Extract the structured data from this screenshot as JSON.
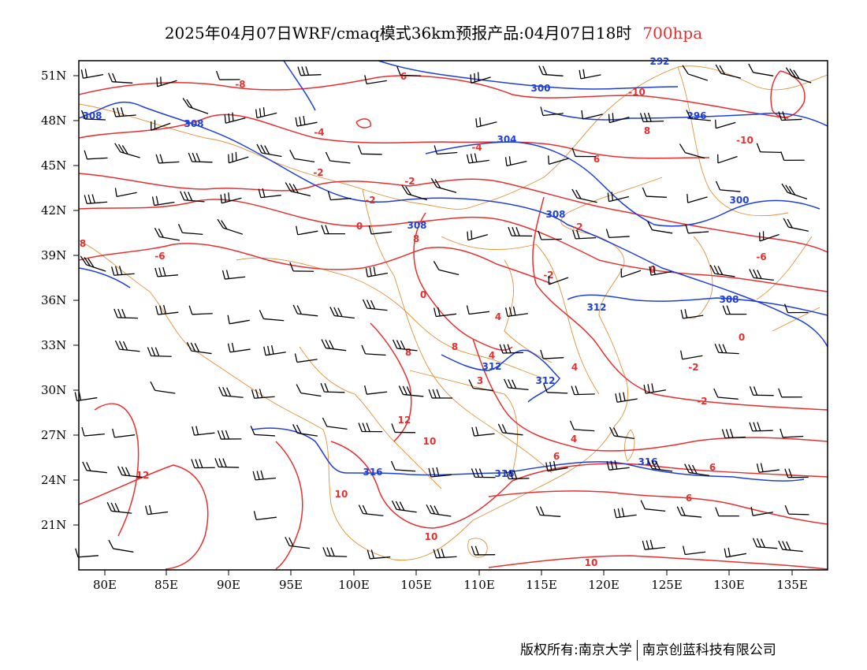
{
  "title": {
    "main": "2025年04月07日WRF/cmaq模式36km预报产品:04月07日18时",
    "level": "700hpa"
  },
  "axes": {
    "lat_labels": [
      "51N",
      "48N",
      "45N",
      "42N",
      "39N",
      "36N",
      "33N",
      "30N",
      "27N",
      "24N",
      "21N"
    ],
    "lon_labels": [
      "80E",
      "85E",
      "90E",
      "95E",
      "100E",
      "105E",
      "110E",
      "115E",
      "120E",
      "125E",
      "130E",
      "135E"
    ]
  },
  "colors": {
    "temperature": "#e53030",
    "height": "#1f3fd6",
    "border": "#e0913a",
    "wind": "#000000"
  },
  "temperature_labels": [
    "-8",
    "6",
    "-10",
    "-4",
    "-4",
    "8",
    "-10",
    "-2",
    "-2",
    "-2",
    "6",
    "0",
    "8",
    "-6",
    "8",
    "-2",
    "-6",
    "0",
    "-2",
    "0",
    "4",
    "4",
    "8",
    "8",
    "4",
    "3",
    "0",
    "-2",
    "-2",
    "12",
    "10",
    "12",
    "10",
    "6",
    "6",
    "4",
    "10",
    "6",
    "10"
  ],
  "height_labels": [
    "292",
    "300",
    "308",
    "308",
    "296",
    "304",
    "308",
    "300",
    "308",
    "312",
    "312",
    "312",
    "308",
    "316",
    "316",
    "316"
  ],
  "footer": {
    "left": "版权所有:南京大学",
    "right": "南京创蓝科技有限公司"
  }
}
